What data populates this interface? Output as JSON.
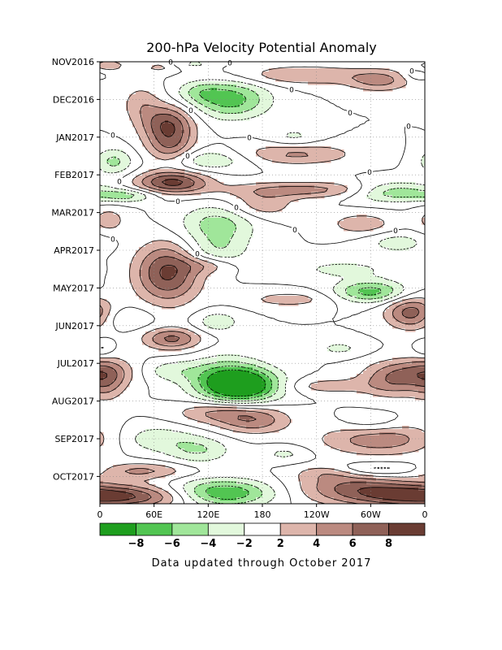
{
  "chart_data": {
    "type": "heatmap",
    "title": "200-hPa Velocity Potential Anomaly",
    "footer": "Data updated through October 2017",
    "x_ticks": [
      "0",
      "60E",
      "120E",
      "180",
      "120W",
      "60W",
      "0"
    ],
    "y_ticks": [
      "NOV2016",
      "DEC2016",
      "JAN2017",
      "FEB2017",
      "MAR2017",
      "APR2017",
      "MAY2017",
      "JUN2017",
      "JUL2017",
      "AUG2017",
      "SEP2017",
      "OCT2017"
    ],
    "colorbar": {
      "bounds": [
        -10,
        -8,
        -6,
        -4,
        -2,
        2,
        4,
        6,
        8,
        10
      ],
      "tick_labels": [
        "-8",
        "-6",
        "-4",
        "-2",
        "2",
        "4",
        "6",
        "8"
      ],
      "colors": [
        "#1e9e1e",
        "#52c552",
        "#a0e69a",
        "#e2f8dc",
        "#ffffff",
        "#ddb5ab",
        "#bb8a80",
        "#8f6158",
        "#6a3c33"
      ]
    },
    "zero_label": "0",
    "features": [
      {
        "lon": 10,
        "month": 0.1,
        "value": 3,
        "rx": 15,
        "rt": 0.12
      },
      {
        "lon": 65,
        "month": 0.15,
        "value": 2.5,
        "rx": 12,
        "rt": 0.1
      },
      {
        "lon": 105,
        "month": 0.05,
        "value": -2.5,
        "rx": 15,
        "rt": 0.08
      },
      {
        "lon": 225,
        "month": 0.35,
        "value": 4,
        "rx": 50,
        "rt": 0.18
      },
      {
        "lon": 310,
        "month": 0.5,
        "value": 4.5,
        "rx": 25,
        "rt": 0.2
      },
      {
        "lon": 350,
        "month": 0.35,
        "value": -2.5,
        "rx": 10,
        "rt": 0.1
      },
      {
        "lon": 110,
        "month": 0.8,
        "value": -3,
        "rx": 18,
        "rt": 0.2
      },
      {
        "lon": 145,
        "month": 1.0,
        "value": -7,
        "rx": 30,
        "rt": 0.35
      },
      {
        "lon": 45,
        "month": 1.1,
        "value": 3,
        "rx": 15,
        "rt": 0.35
      },
      {
        "lon": 75,
        "month": 1.65,
        "value": 7.5,
        "rx": 20,
        "rt": 0.35
      },
      {
        "lon": 78,
        "month": 2.3,
        "value": 5,
        "rx": 18,
        "rt": 0.35
      },
      {
        "lon": 120,
        "month": 2.6,
        "value": -4,
        "rx": 35,
        "rt": 0.2
      },
      {
        "lon": 15,
        "month": 2.65,
        "value": -4.5,
        "rx": 15,
        "rt": 0.25
      },
      {
        "lon": 215,
        "month": 2.45,
        "value": 4.5,
        "rx": 45,
        "rt": 0.2
      },
      {
        "lon": 80,
        "month": 3.2,
        "value": 8.5,
        "rx": 28,
        "rt": 0.2
      },
      {
        "lon": 235,
        "month": 3.4,
        "value": 5,
        "rx": 65,
        "rt": 0.15
      },
      {
        "lon": 325,
        "month": 3.45,
        "value": -6.5,
        "rx": 35,
        "rt": 0.18
      },
      {
        "lon": 30,
        "month": 3.55,
        "value": -4.5,
        "rx": 22,
        "rt": 0.12
      },
      {
        "lon": 215,
        "month": 2.0,
        "value": -2.5,
        "rx": 20,
        "rt": 0.2
      },
      {
        "lon": 180,
        "month": 3.8,
        "value": 3.5,
        "rx": 25,
        "rt": 0.25
      },
      {
        "lon": 130,
        "month": 4.3,
        "value": -5,
        "rx": 30,
        "rt": 0.35
      },
      {
        "lon": 10,
        "month": 4.2,
        "value": 3,
        "rx": 14,
        "rt": 0.25
      },
      {
        "lon": 290,
        "month": 4.3,
        "value": 3.5,
        "rx": 25,
        "rt": 0.2
      },
      {
        "lon": 75,
        "month": 5.6,
        "value": 8.5,
        "rx": 25,
        "rt": 0.55
      },
      {
        "lon": 330,
        "month": 4.8,
        "value": -3,
        "rx": 25,
        "rt": 0.2
      },
      {
        "lon": 130,
        "month": 5.0,
        "value": -3.5,
        "rx": 25,
        "rt": 0.3
      },
      {
        "lon": 270,
        "month": 5.5,
        "value": -2.5,
        "rx": 45,
        "rt": 0.2
      },
      {
        "lon": 300,
        "month": 6.1,
        "value": -7,
        "rx": 28,
        "rt": 0.2
      },
      {
        "lon": 120,
        "month": 5.4,
        "value": 3,
        "rx": 20,
        "rt": 0.15
      },
      {
        "lon": 210,
        "month": 6.3,
        "value": 3,
        "rx": 35,
        "rt": 0.15
      },
      {
        "lon": 345,
        "month": 6.65,
        "value": 7,
        "rx": 20,
        "rt": 0.3
      },
      {
        "lon": 30,
        "month": 6.8,
        "value": -2.5,
        "rx": 20,
        "rt": 0.2
      },
      {
        "lon": 130,
        "month": 6.9,
        "value": -3.5,
        "rx": 18,
        "rt": 0.2
      },
      {
        "lon": 80,
        "month": 7.35,
        "value": 6.5,
        "rx": 22,
        "rt": 0.2
      },
      {
        "lon": 265,
        "month": 7.6,
        "value": -2.5,
        "rx": 20,
        "rt": 0.15
      },
      {
        "lon": 2,
        "month": 7.6,
        "value": -2.5,
        "rx": 8,
        "rt": 0.15
      },
      {
        "lon": 140,
        "month": 8.4,
        "value": -6,
        "rx": 30,
        "rt": 0.4
      },
      {
        "lon": 160,
        "month": 8.6,
        "value": -9,
        "rx": 30,
        "rt": 0.3
      },
      {
        "lon": 75,
        "month": 8.2,
        "value": -3,
        "rx": 25,
        "rt": 0.2
      },
      {
        "lon": 355,
        "month": 8.2,
        "value": 4.5,
        "rx": 35,
        "rt": 0.25
      },
      {
        "lon": 325,
        "month": 8.5,
        "value": 4.5,
        "rx": 25,
        "rt": 0.3
      },
      {
        "lon": 8,
        "month": 8.5,
        "value": 4,
        "rx": 15,
        "rt": 0.35
      },
      {
        "lon": 250,
        "month": 8.6,
        "value": 3,
        "rx": 35,
        "rt": 0.15
      },
      {
        "lon": 125,
        "month": 9.3,
        "value": 4,
        "rx": 30,
        "rt": 0.2
      },
      {
        "lon": 170,
        "month": 9.5,
        "value": 5.5,
        "rx": 28,
        "rt": 0.25
      },
      {
        "lon": 300,
        "month": 9.6,
        "value": -2.5,
        "rx": 25,
        "rt": 0.2
      },
      {
        "lon": 310,
        "month": 10.0,
        "value": 5.5,
        "rx": 45,
        "rt": 0.3
      },
      {
        "lon": 60,
        "month": 10.0,
        "value": -3.5,
        "rx": 30,
        "rt": 0.25
      },
      {
        "lon": 110,
        "month": 10.3,
        "value": -4,
        "rx": 25,
        "rt": 0.25
      },
      {
        "lon": 310,
        "month": 10.8,
        "value": -3,
        "rx": 35,
        "rt": 0.12
      },
      {
        "lon": 205,
        "month": 10.4,
        "value": -2.5,
        "rx": 20,
        "rt": 0.15
      },
      {
        "lon": 45,
        "month": 10.85,
        "value": 4.5,
        "rx": 35,
        "rt": 0.15
      },
      {
        "lon": 250,
        "month": 10.9,
        "value": 3,
        "rx": 25,
        "rt": 0.15
      },
      {
        "lon": 135,
        "month": 11.45,
        "value": -9,
        "rx": 40,
        "rt": 0.25
      },
      {
        "lon": 35,
        "month": 11.55,
        "value": 6,
        "rx": 60,
        "rt": 0.2
      },
      {
        "lon": 320,
        "month": 11.45,
        "value": 6.5,
        "rx": 60,
        "rt": 0.25
      },
      {
        "lon": 275,
        "month": 11.2,
        "value": 3,
        "rx": 40,
        "rt": 0.2
      }
    ]
  }
}
